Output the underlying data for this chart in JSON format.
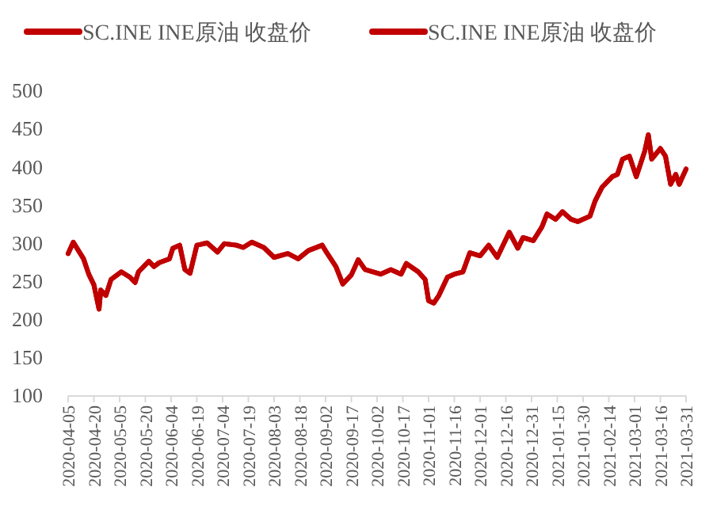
{
  "chart_data": {
    "type": "line",
    "legend": "top",
    "x": [
      "2020-04-05",
      "2020-04-08",
      "2020-04-11",
      "2020-04-14",
      "2020-04-17",
      "2020-04-20",
      "2020-04-23",
      "2020-04-24",
      "2020-04-27",
      "2020-04-30",
      "2020-05-06",
      "2020-05-11",
      "2020-05-14",
      "2020-05-16",
      "2020-05-22",
      "2020-05-25",
      "2020-05-28",
      "2020-06-03",
      "2020-06-05",
      "2020-06-09",
      "2020-06-12",
      "2020-06-15",
      "2020-06-19",
      "2020-06-25",
      "2020-07-01",
      "2020-07-05",
      "2020-07-12",
      "2020-07-16",
      "2020-07-21",
      "2020-07-28",
      "2020-08-03",
      "2020-08-11",
      "2020-08-17",
      "2020-08-23",
      "2020-08-31",
      "2020-09-03",
      "2020-09-08",
      "2020-09-12",
      "2020-09-17",
      "2020-09-21",
      "2020-09-25",
      "2020-10-04",
      "2020-10-10",
      "2020-10-16",
      "2020-10-19",
      "2020-10-26",
      "2020-10-30",
      "2020-11-01",
      "2020-11-04",
      "2020-11-07",
      "2020-11-12",
      "2020-11-16",
      "2020-11-21",
      "2020-11-25",
      "2020-12-01",
      "2020-12-06",
      "2020-12-11",
      "2020-12-18",
      "2020-12-23",
      "2020-12-26",
      "2021-01-01",
      "2021-01-06",
      "2021-01-09",
      "2021-01-14",
      "2021-01-18",
      "2021-01-23",
      "2021-01-27",
      "2021-02-03",
      "2021-02-06",
      "2021-02-10",
      "2021-02-16",
      "2021-02-19",
      "2021-02-22",
      "2021-02-26",
      "2021-03-02",
      "2021-03-07",
      "2021-03-09",
      "2021-03-11",
      "2021-03-16",
      "2021-03-19",
      "2021-03-22",
      "2021-03-25",
      "2021-03-27",
      "2021-03-29",
      "2021-03-31"
    ],
    "series": [
      {
        "name": "SC.INE INE原油 收盘价",
        "color": "#c00000",
        "values": [
          287,
          302,
          291,
          280,
          260,
          246,
          214,
          239,
          232,
          253,
          263,
          256,
          249,
          263,
          277,
          270,
          275,
          280,
          294,
          298,
          266,
          261,
          298,
          301,
          289,
          300,
          298,
          295,
          302,
          295,
          282,
          287,
          280,
          291,
          298,
          287,
          270,
          247,
          259,
          279,
          266,
          260,
          266,
          260,
          274,
          263,
          253,
          225,
          222,
          232,
          256,
          260,
          263,
          288,
          284,
          298,
          282,
          315,
          294,
          308,
          304,
          322,
          339,
          332,
          342,
          332,
          329,
          336,
          356,
          374,
          388,
          391,
          411,
          415,
          388,
          422,
          443,
          411,
          425,
          415,
          378,
          391,
          378,
          388,
          398
        ]
      },
      {
        "name": "SC.INE INE原油 收盘价",
        "color": "#c00000",
        "values": [
          287,
          302,
          291,
          280,
          260,
          246,
          214,
          239,
          232,
          253,
          263,
          256,
          249,
          263,
          277,
          270,
          275,
          280,
          294,
          298,
          266,
          261,
          298,
          301,
          289,
          300,
          298,
          295,
          302,
          295,
          282,
          287,
          280,
          291,
          298,
          287,
          270,
          247,
          259,
          279,
          266,
          260,
          266,
          260,
          274,
          263,
          253,
          225,
          222,
          232,
          256,
          260,
          263,
          288,
          284,
          298,
          282,
          315,
          294,
          308,
          304,
          322,
          339,
          332,
          342,
          332,
          329,
          336,
          356,
          374,
          388,
          391,
          411,
          415,
          388,
          422,
          443,
          411,
          425,
          415,
          378,
          391,
          378,
          388,
          398
        ]
      }
    ],
    "xlim": [
      "2020-04-05",
      "2021-03-31"
    ],
    "xticks": [
      "2020-04-05",
      "2020-04-20",
      "2020-05-05",
      "2020-05-20",
      "2020-06-04",
      "2020-06-19",
      "2020-07-04",
      "2020-07-19",
      "2020-08-03",
      "2020-08-18",
      "2020-09-02",
      "2020-09-17",
      "2020-10-02",
      "2020-10-17",
      "2020-11-01",
      "2020-11-16",
      "2020-12-01",
      "2020-12-16",
      "2020-12-31",
      "2021-01-15",
      "2021-01-30",
      "2021-02-14",
      "2021-03-01",
      "2021-03-16",
      "2021-03-31"
    ],
    "ylim": [
      100,
      500
    ],
    "yticks": [
      100,
      150,
      200,
      250,
      300,
      350,
      400,
      450,
      500
    ]
  }
}
